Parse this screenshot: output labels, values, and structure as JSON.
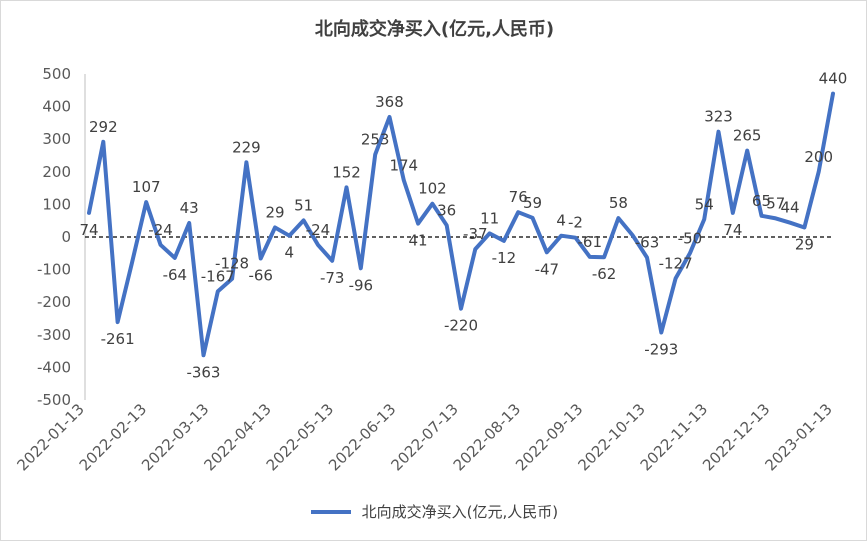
{
  "chart_data": {
    "type": "line",
    "title": "北向成交净买入(亿元,人民币)",
    "xlabel": "",
    "ylabel": "",
    "ylim": [
      -500,
      500
    ],
    "yticks": [
      "500",
      "400",
      "300",
      "200",
      "100",
      "0",
      "-100",
      "-200",
      "-300",
      "-400",
      "-500"
    ],
    "xtick_labels": [
      "2022-01-13",
      "2022-02-13",
      "2022-03-13",
      "2022-04-13",
      "2022-05-13",
      "2022-06-13",
      "2022-07-13",
      "2022-08-13",
      "2022-09-13",
      "2022-10-13",
      "2022-11-13",
      "2022-12-13",
      "2023-01-13"
    ],
    "legend": "bottom",
    "color": "#4472C4",
    "series": [
      {
        "name": "北向成交净买入(亿元,人民币)",
        "values": [
          74,
          292,
          -261,
          -80,
          107,
          -24,
          -64,
          43,
          -363,
          -167,
          -128,
          229,
          -66,
          29,
          4,
          51,
          -24,
          -73,
          152,
          -96,
          253,
          368,
          174,
          41,
          102,
          36,
          -220,
          -37,
          11,
          -12,
          76,
          59,
          -47,
          4,
          -2,
          -61,
          -62,
          58,
          5,
          -63,
          -293,
          -127,
          -50,
          54,
          323,
          74,
          265,
          65,
          57,
          44,
          29,
          200,
          440
        ],
        "labels": [
          "74",
          "292",
          "-261",
          "",
          "107",
          "-24",
          "-64",
          "43",
          "-363",
          "-167",
          "-128",
          "229",
          "-66",
          "29",
          "4",
          "51",
          "-24",
          "-73",
          "152",
          "-96",
          "253",
          "368",
          "174",
          "41",
          "102",
          "36",
          "-220",
          "-37",
          "11",
          "-12",
          "76",
          "59",
          "-47",
          "4",
          "-2",
          "-61",
          "-62",
          "58",
          "",
          "-63",
          "-293",
          "-127",
          "-50",
          "54",
          "323",
          "74",
          "265",
          "65",
          "57",
          "44",
          "29",
          "200",
          "440"
        ]
      }
    ]
  }
}
